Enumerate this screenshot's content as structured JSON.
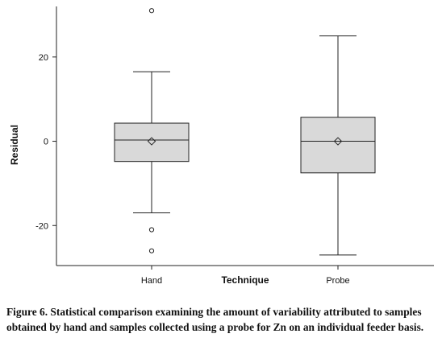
{
  "chart_data": {
    "type": "boxplot",
    "xlabel": "Technique",
    "ylabel": "Residual",
    "ylim": [
      -29.5,
      32
    ],
    "yticks": [
      20,
      0,
      -20
    ],
    "grid": false,
    "categories": [
      "Hand",
      "Probe"
    ],
    "series": [
      {
        "name": "Hand",
        "whisker_low": -17,
        "q1": -4.8,
        "median": 0.3,
        "mean": 0,
        "q3": 4.3,
        "whisker_high": 16.5,
        "outliers": [
          31,
          -21,
          -26
        ]
      },
      {
        "name": "Probe",
        "whisker_low": -27,
        "q1": -7.5,
        "median": 0,
        "mean": 0,
        "q3": 5.7,
        "whisker_high": 25,
        "outliers": []
      }
    ],
    "colors": {
      "box_fill": "#d9d9d9",
      "stroke": "#222222"
    }
  },
  "caption": {
    "line1": "Figure 6. Statistical comparison examining the amount of variability attributed to samples",
    "line2": "obtained by hand and samples collected using a probe for Zn on an individual feeder basis."
  }
}
